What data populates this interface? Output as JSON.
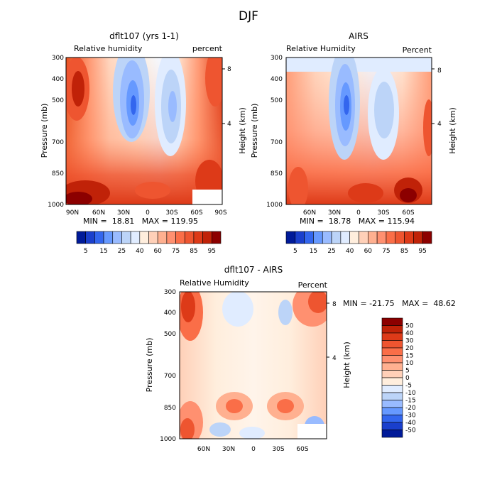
{
  "main_title": "DJF",
  "chart_data": [
    {
      "type": "heatmap",
      "title": "dflt107 (yrs 1-1)",
      "subtitle_left": "Relative humidity",
      "subtitle_right": "percent",
      "ylabel": "Pressure (mb)",
      "ylabel_right": "Height (km)",
      "x_ticks": [
        "90N",
        "60N",
        "30N",
        "0",
        "30S",
        "60S",
        "90S"
      ],
      "y_ticks": [
        "300",
        "400",
        "500",
        "700",
        "850",
        "1000"
      ],
      "y_right_ticks": [
        "8",
        "4"
      ],
      "stats": "MIN =  18.81   MAX = 119.95",
      "colorbar": {
        "orientation": "horizontal",
        "labels": [
          "5",
          "15",
          "25",
          "40",
          "60",
          "75",
          "85",
          "95"
        ],
        "colors": [
          "#001a99",
          "#1a3fcc",
          "#3366ee",
          "#6699ff",
          "#99bbff",
          "#bcd4f8",
          "#e0ecff",
          "#ffeedd",
          "#ffd0b8",
          "#ffb090",
          "#ff9070",
          "#fa6e48",
          "#ee5530",
          "#dd3a18",
          "#c02208",
          "#8c0000"
        ]
      }
    },
    {
      "type": "heatmap",
      "title": "AIRS",
      "subtitle_left": "Relative Humidity",
      "subtitle_right": "Percent",
      "ylabel": "Pressure (mb)",
      "ylabel_right": "Height (km)",
      "x_ticks": [
        "60N",
        "30N",
        "0",
        "30S",
        "60S"
      ],
      "y_ticks": [
        "300",
        "400",
        "500",
        "700",
        "850",
        "1000"
      ],
      "y_right_ticks": [
        "8",
        "4"
      ],
      "stats": "MIN =  18.78   MAX = 115.94",
      "colorbar": {
        "orientation": "horizontal",
        "labels": [
          "5",
          "15",
          "25",
          "40",
          "60",
          "75",
          "85",
          "95"
        ],
        "colors": [
          "#001a99",
          "#1a3fcc",
          "#3366ee",
          "#6699ff",
          "#99bbff",
          "#bcd4f8",
          "#e0ecff",
          "#ffeedd",
          "#ffd0b8",
          "#ffb090",
          "#ff9070",
          "#fa6e48",
          "#ee5530",
          "#dd3a18",
          "#c02208",
          "#8c0000"
        ]
      }
    },
    {
      "type": "heatmap",
      "title": "dflt107 - AIRS",
      "subtitle_left": "Relative Humidity",
      "subtitle_right": "Percent",
      "ylabel": "Pressure (mb)",
      "ylabel_right": "Height (km)",
      "x_ticks": [
        "60N",
        "30N",
        "0",
        "30S",
        "60S"
      ],
      "y_ticks": [
        "300",
        "400",
        "500",
        "700",
        "850",
        "1000"
      ],
      "y_right_ticks": [
        "8",
        "4"
      ],
      "stats": "MIN = -21.75   MAX =  48.62",
      "colorbar": {
        "orientation": "vertical",
        "labels": [
          "50",
          "40",
          "30",
          "20",
          "15",
          "10",
          "5",
          "0",
          "-5",
          "-10",
          "-15",
          "-20",
          "-30",
          "-40",
          "-50"
        ],
        "colors": [
          "#8c0000",
          "#c02208",
          "#dd3a18",
          "#ee5530",
          "#fa6e48",
          "#ff9070",
          "#ffb090",
          "#ffd0b8",
          "#ffeedd",
          "#e0ecff",
          "#bcd4f8",
          "#99bbff",
          "#6699ff",
          "#3366ee",
          "#1a3fcc",
          "#001a99"
        ]
      }
    }
  ]
}
